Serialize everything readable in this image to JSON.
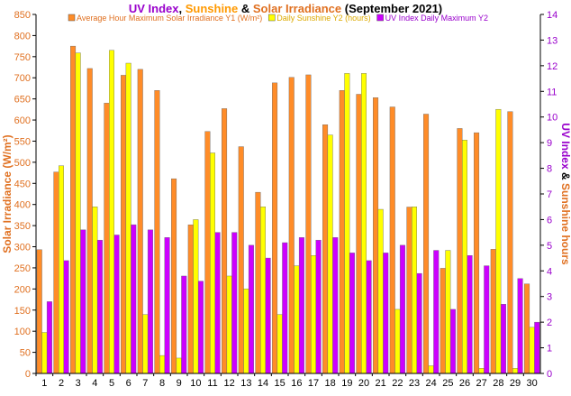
{
  "chart_data": {
    "type": "bar",
    "title": {
      "parts": [
        {
          "text": "UV Index",
          "color": "#9900CC"
        },
        {
          "text": ", ",
          "color": "#000000"
        },
        {
          "text": "Sunshine",
          "color": "#FF9900"
        },
        {
          "text": " & ",
          "color": "#000000"
        },
        {
          "text": "Solar Irradiance",
          "color": "#E07020"
        },
        {
          "text": "  (September 2021)",
          "color": "#000000"
        }
      ]
    },
    "ylabel_left": "Solar Irradiance (W/m²)",
    "ylabel_right": {
      "parts": [
        {
          "text": "UV Index",
          "color": "#9900CC"
        },
        {
          "text": " & ",
          "color": "#000000"
        },
        {
          "text": "Sunshine hours",
          "color": "#E07020"
        }
      ]
    },
    "ylim_left": [
      0,
      850
    ],
    "ylim_right": [
      0,
      14
    ],
    "yticks_left": [
      "0",
      "50",
      "100",
      "150",
      "200",
      "250",
      "300",
      "350",
      "400",
      "450",
      "500",
      "550",
      "600",
      "650",
      "700",
      "750",
      "800",
      "850"
    ],
    "yticks_right": [
      "0",
      "1",
      "2",
      "3",
      "4",
      "5",
      "6",
      "7",
      "8",
      "9",
      "10",
      "11",
      "12",
      "13",
      "14"
    ],
    "categories": [
      "1",
      "2",
      "3",
      "4",
      "5",
      "6",
      "7",
      "8",
      "9",
      "10",
      "11",
      "12",
      "13",
      "14",
      "15",
      "16",
      "17",
      "18",
      "19",
      "20",
      "21",
      "22",
      "23",
      "24",
      "25",
      "26",
      "27",
      "28",
      "29",
      "30"
    ],
    "legend_placement": "top",
    "grid": false,
    "series": [
      {
        "name": "Average Hour Maximum Solar Irradiance Y1 (W/m²)",
        "axis": "left",
        "color": "#FF8C28",
        "legend_color": "#E07020",
        "values": [
          293,
          477,
          775,
          722,
          640,
          706,
          720,
          670,
          461,
          352,
          573,
          627,
          537,
          429,
          688,
          701,
          707,
          589,
          670,
          661,
          653,
          631,
          394,
          614,
          249,
          580,
          570,
          294,
          620,
          212
        ]
      },
      {
        "name": "Daily Sunshine Y2 (hours)",
        "axis": "right",
        "color": "#FFFF00",
        "legend_color": "#DDAA00",
        "values": [
          1.6,
          8.1,
          12.5,
          6.5,
          12.6,
          12.1,
          2.3,
          0.7,
          0.6,
          6.0,
          8.6,
          3.8,
          3.3,
          6.5,
          2.3,
          4.2,
          4.6,
          9.3,
          11.7,
          11.7,
          6.4,
          2.5,
          6.5,
          0.3,
          4.8,
          9.1,
          0.2,
          10.3,
          0.2,
          1.8
        ]
      },
      {
        "name": "UV Index Daily Maximum Y2",
        "axis": "right",
        "color": "#CC00FF",
        "legend_color": "#9900CC",
        "values": [
          2.8,
          4.4,
          5.6,
          5.2,
          5.4,
          5.8,
          5.6,
          5.3,
          3.8,
          3.6,
          5.5,
          5.5,
          5.0,
          4.5,
          5.1,
          5.3,
          5.2,
          5.3,
          4.7,
          4.4,
          4.7,
          5.0,
          3.9,
          4.8,
          2.5,
          4.6,
          4.2,
          2.7,
          3.7,
          2.0
        ]
      }
    ]
  }
}
